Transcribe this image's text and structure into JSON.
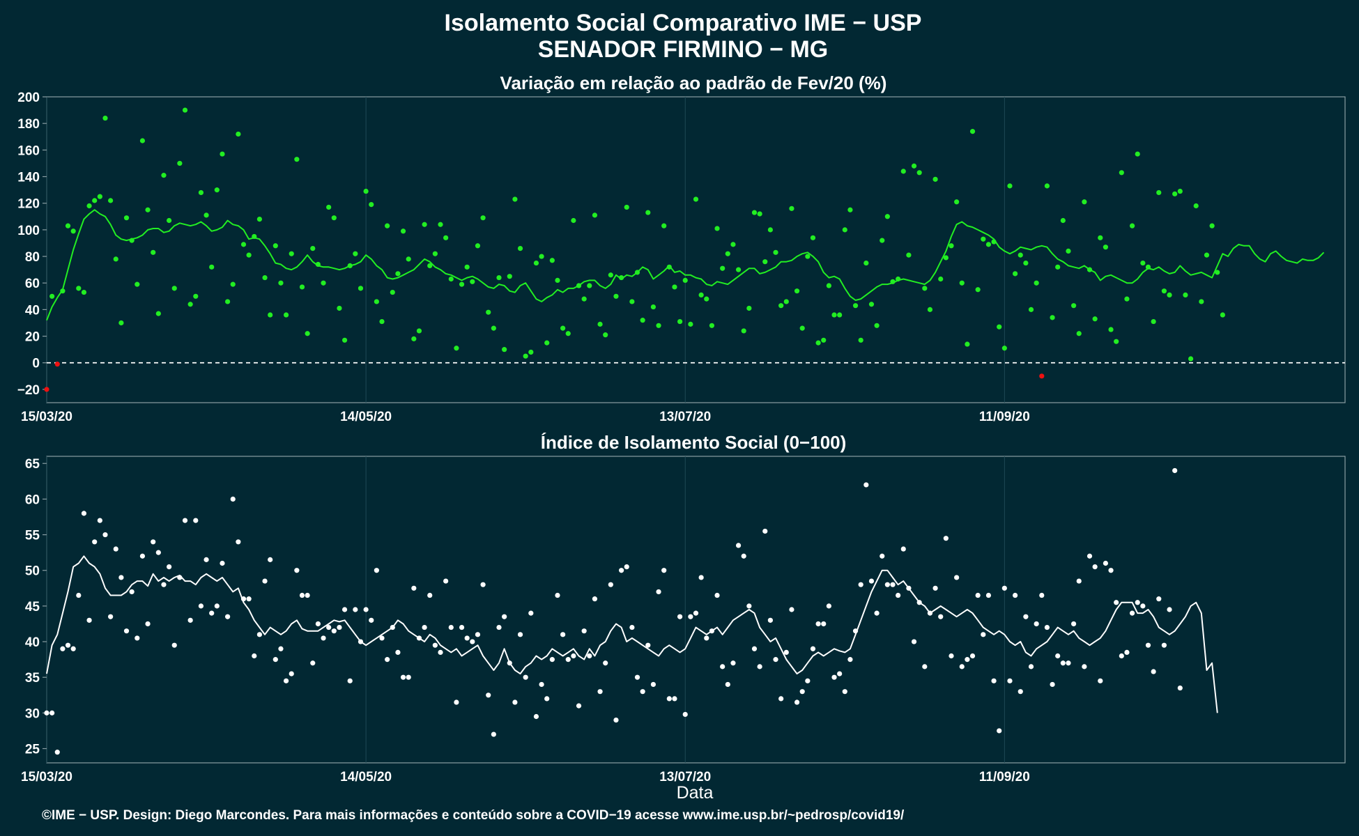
{
  "header": {
    "title_line1": "Isolamento Social Comparativo IME − USP",
    "title_line2": "SENADOR FIRMINO − MG"
  },
  "footer": {
    "text": "©IME − USP. Design: Diego Marcondes. Para mais informações e conteúdo sobre a COVID−19 acesse www.ime.usp.br/~pedrosp/covid19/"
  },
  "colors": {
    "background": "#022833",
    "panel_border": "#8a9ea3",
    "grid": "#1f4a55",
    "positive_points": "#22ee22",
    "negative_points": "#ee1111",
    "index_points": "#ffffff",
    "text": "#ffffff"
  },
  "chart_data": [
    {
      "type": "scatter",
      "title": "Variação em relação ao padrão de Fev/20 (%)",
      "xlabel": "",
      "ylabel": "",
      "x_start": "15/03/20",
      "x_end": "14/11/20",
      "xtick_labels": [
        "15/03/20",
        "14/05/20",
        "13/07/20",
        "11/09/20"
      ],
      "ylim": [
        -30,
        200
      ],
      "yticks": [
        -20,
        0,
        20,
        40,
        60,
        80,
        100,
        120,
        140,
        160,
        180,
        200
      ],
      "reference_line": {
        "y": 0,
        "style": "dashed"
      },
      "grid": true,
      "moving_average": [
        32,
        42,
        49,
        55,
        70,
        85,
        97,
        108,
        112,
        115,
        112,
        110,
        104,
        96,
        93,
        92,
        93,
        94,
        96,
        100,
        101,
        101,
        98,
        99,
        103,
        105,
        104,
        103,
        104,
        106,
        103,
        99,
        100,
        102,
        107,
        104,
        103,
        100,
        93,
        94,
        93,
        88,
        82,
        75,
        74,
        71,
        70,
        72,
        76,
        81,
        76,
        73,
        72,
        72,
        71,
        70,
        71,
        73,
        74,
        76,
        81,
        78,
        73,
        70,
        64,
        63,
        64,
        66,
        68,
        70,
        74,
        78,
        76,
        72,
        70,
        67,
        66,
        64,
        62,
        64,
        65,
        63,
        60,
        57,
        56,
        59,
        58,
        54,
        53,
        58,
        60,
        54,
        48,
        46,
        49,
        51,
        55,
        53,
        56,
        56,
        58,
        61,
        62,
        62,
        58,
        56,
        59,
        66,
        63,
        66,
        65,
        68,
        72,
        70,
        63,
        66,
        69,
        73,
        68,
        69,
        66,
        66,
        64,
        63,
        59,
        58,
        61,
        60,
        59,
        62,
        65,
        68,
        71,
        71,
        67,
        68,
        70,
        72,
        76,
        76,
        77,
        80,
        82,
        83,
        80,
        76,
        68,
        64,
        65,
        63,
        56,
        50,
        47,
        48,
        51,
        54,
        57,
        59,
        59,
        60,
        62,
        63,
        62,
        61,
        60,
        59,
        62,
        68,
        76,
        84,
        95,
        104,
        106,
        103,
        102,
        100,
        98,
        96,
        93,
        87,
        84,
        82,
        84,
        87,
        86,
        85,
        87,
        88,
        87,
        82,
        78,
        76,
        73,
        72,
        71,
        73,
        70,
        68,
        62,
        65,
        66,
        64,
        62,
        60,
        60,
        63,
        68,
        71,
        70,
        72,
        69,
        67,
        68,
        73,
        69,
        66,
        67,
        68,
        66,
        64,
        73,
        82,
        80,
        86,
        89,
        88,
        88,
        82,
        78,
        76,
        82,
        84,
        80,
        77,
        76,
        75,
        78,
        77,
        77,
        79,
        83
      ],
      "points": [
        -20,
        50,
        -1,
        54,
        103,
        99,
        56,
        53,
        118,
        122,
        125,
        184,
        122,
        78,
        30,
        109,
        92,
        59,
        167,
        115,
        83,
        37,
        141,
        107,
        56,
        150,
        190,
        44,
        50,
        128,
        111,
        72,
        130,
        157,
        46,
        59,
        172,
        89,
        81,
        95,
        108,
        64,
        36,
        88,
        60,
        36,
        82,
        153,
        57,
        22,
        86,
        74,
        60,
        117,
        109,
        41,
        17,
        73,
        82,
        56,
        129,
        119,
        46,
        31,
        103,
        53,
        67,
        99,
        78,
        18,
        24,
        104,
        73,
        82,
        104,
        94,
        63,
        11,
        59,
        72,
        61,
        88,
        109,
        38,
        26,
        64,
        10,
        65,
        123,
        86,
        5,
        8,
        75,
        80,
        15,
        77,
        62,
        26,
        22,
        107,
        58,
        48,
        58,
        111,
        29,
        21,
        66,
        50,
        64,
        117,
        46,
        68,
        32,
        113,
        42,
        28,
        103,
        72,
        57,
        31,
        62,
        29,
        123,
        51,
        48,
        28,
        101,
        71,
        82,
        89,
        70,
        24,
        41,
        113,
        112,
        76,
        100,
        83,
        43,
        46,
        116,
        54,
        26,
        80,
        94,
        15,
        17,
        58,
        36,
        36,
        100,
        115,
        43,
        17,
        75,
        44,
        28,
        92,
        110,
        61,
        63,
        144,
        81,
        148,
        143,
        56,
        40,
        138,
        63,
        79,
        88,
        121,
        60,
        14,
        174,
        55,
        93,
        89,
        91,
        27,
        11,
        133,
        67,
        81,
        75,
        40,
        60,
        -10,
        133,
        34,
        72,
        107,
        84,
        43,
        22,
        121,
        70,
        33,
        94,
        87,
        25,
        16,
        143,
        48,
        103,
        157,
        75,
        72,
        31,
        128,
        54,
        51,
        127,
        129,
        51,
        3,
        118,
        46,
        81,
        103,
        68,
        36
      ],
      "negative_points_color": "#ee1111"
    },
    {
      "type": "scatter",
      "title": "Índice de Isolamento Social (0−100)",
      "xlabel": "Data",
      "ylabel": "",
      "x_start": "15/03/20",
      "x_end": "14/11/20",
      "xtick_labels": [
        "15/03/20",
        "14/05/20",
        "13/07/20",
        "11/09/20"
      ],
      "ylim": [
        23,
        66
      ],
      "yticks": [
        25,
        30,
        35,
        40,
        45,
        50,
        55,
        60,
        65
      ],
      "grid": true,
      "moving_average": [
        35.5,
        39.5,
        41,
        44,
        47,
        50.5,
        51,
        52,
        51,
        50.5,
        49.5,
        47.5,
        46.5,
        46.5,
        46.5,
        47,
        48,
        48.5,
        48.5,
        47.8,
        49.5,
        48.5,
        49,
        48.5,
        49,
        49.3,
        48.5,
        48.5,
        48,
        49,
        49.5,
        49,
        48.5,
        49,
        48,
        47,
        47.5,
        45.5,
        44.5,
        43,
        42,
        41,
        42,
        41.5,
        41,
        41.5,
        42.5,
        43,
        41.8,
        41.5,
        41.5,
        41.5,
        42,
        42.5,
        43,
        42.8,
        43,
        42,
        41,
        40,
        39.5,
        40,
        40.5,
        41,
        41.5,
        42,
        43,
        42.5,
        41.5,
        41,
        40.5,
        40,
        41,
        40.5,
        39.5,
        39,
        38.5,
        39,
        38,
        38.5,
        39,
        39.5,
        38,
        37,
        36,
        37,
        39,
        37,
        36,
        35.5,
        36.5,
        37,
        38,
        37.5,
        38,
        39,
        38.5,
        38,
        38.5,
        39,
        38,
        37.5,
        39,
        38,
        39.5,
        40,
        41.5,
        42.5,
        42,
        40,
        40.5,
        40,
        39.5,
        39,
        38.5,
        38,
        39,
        39.5,
        39,
        38.5,
        39,
        40.5,
        42,
        41.5,
        41,
        41.5,
        42,
        41,
        42,
        43,
        43.5,
        44,
        44.5,
        44,
        42,
        41,
        40,
        40.5,
        39,
        37.5,
        36.5,
        35.5,
        36,
        37,
        38,
        38.5,
        38,
        38.5,
        39,
        38.7,
        38.5,
        39,
        41,
        43,
        45,
        47,
        48.5,
        50,
        50,
        49,
        48,
        48.5,
        47.5,
        46.5,
        45.5,
        45,
        44,
        44.5,
        45,
        44.5,
        44,
        43.5,
        44,
        44.5,
        44,
        43,
        42,
        41.5,
        41,
        41.5,
        41,
        40,
        39.5,
        40,
        38.5,
        38,
        39,
        39.5,
        40,
        41,
        42,
        41.5,
        41,
        41.5,
        40.5,
        40,
        39.5,
        40,
        40.5,
        41.5,
        43,
        44.5,
        45.5,
        45.5,
        45.5,
        44,
        44,
        44.5,
        43.5,
        42,
        41.5,
        41,
        41.5,
        42.5,
        43.5,
        45,
        45.5,
        44,
        36,
        37,
        30
      ],
      "points": [
        30,
        30,
        24.5,
        39,
        39.5,
        39,
        46.5,
        58,
        43,
        54,
        57,
        55,
        43.5,
        53,
        49,
        41.5,
        47,
        40.5,
        52,
        42.5,
        54,
        52.5,
        48,
        50.5,
        39.5,
        49,
        57,
        43,
        57,
        45,
        51.5,
        44,
        45,
        51,
        43.5,
        60,
        54,
        46,
        46,
        38,
        41,
        48.5,
        51.5,
        37.5,
        39,
        34.5,
        35.5,
        50,
        46.5,
        46.5,
        37,
        42.5,
        40.5,
        42,
        41.5,
        42,
        44.5,
        34.5,
        44.5,
        40,
        44.5,
        43,
        50,
        40.5,
        37.5,
        42,
        38.5,
        35,
        35,
        47.5,
        40.5,
        42,
        46.5,
        39.5,
        38.5,
        48.5,
        42,
        31.5,
        42,
        40.5,
        40,
        41,
        48,
        32.5,
        27,
        42,
        43.5,
        37,
        31.5,
        41,
        35,
        44,
        29.5,
        34,
        32,
        37.5,
        46.5,
        41,
        37.5,
        38,
        31,
        41.5,
        38,
        46,
        33,
        37,
        48,
        29,
        50,
        50.5,
        42,
        35,
        33,
        39.5,
        34,
        47,
        50,
        32,
        32,
        43.5,
        29.8,
        43.5,
        44,
        49,
        40.5,
        41.5,
        46.5,
        36.5,
        34,
        37,
        53.5,
        52,
        45,
        39,
        36.5,
        55.5,
        43,
        37.5,
        32,
        38.5,
        44.5,
        31.5,
        33,
        34.5,
        39,
        42.5,
        42.5,
        45,
        35,
        35.5,
        33,
        37.5,
        41.5,
        48,
        62,
        48.5,
        44,
        52,
        48,
        48,
        46.5,
        53,
        47.5,
        40,
        45.5,
        36.5,
        44,
        47.5,
        43.5,
        54.5,
        38,
        49,
        36.5,
        37.5,
        38,
        46.5,
        41,
        46.5,
        34.5,
        27.5,
        47.5,
        34.5,
        46.5,
        33,
        43.5,
        36.5,
        42.5,
        46.5,
        42,
        34,
        38,
        37,
        37,
        42.5,
        48.5,
        36.5,
        52,
        50.5,
        34.5,
        51,
        50,
        45.5,
        38,
        38.5,
        44,
        45.5,
        45,
        39.5,
        35.8,
        46,
        39.5,
        44.5,
        64,
        33.5
      ]
    }
  ]
}
